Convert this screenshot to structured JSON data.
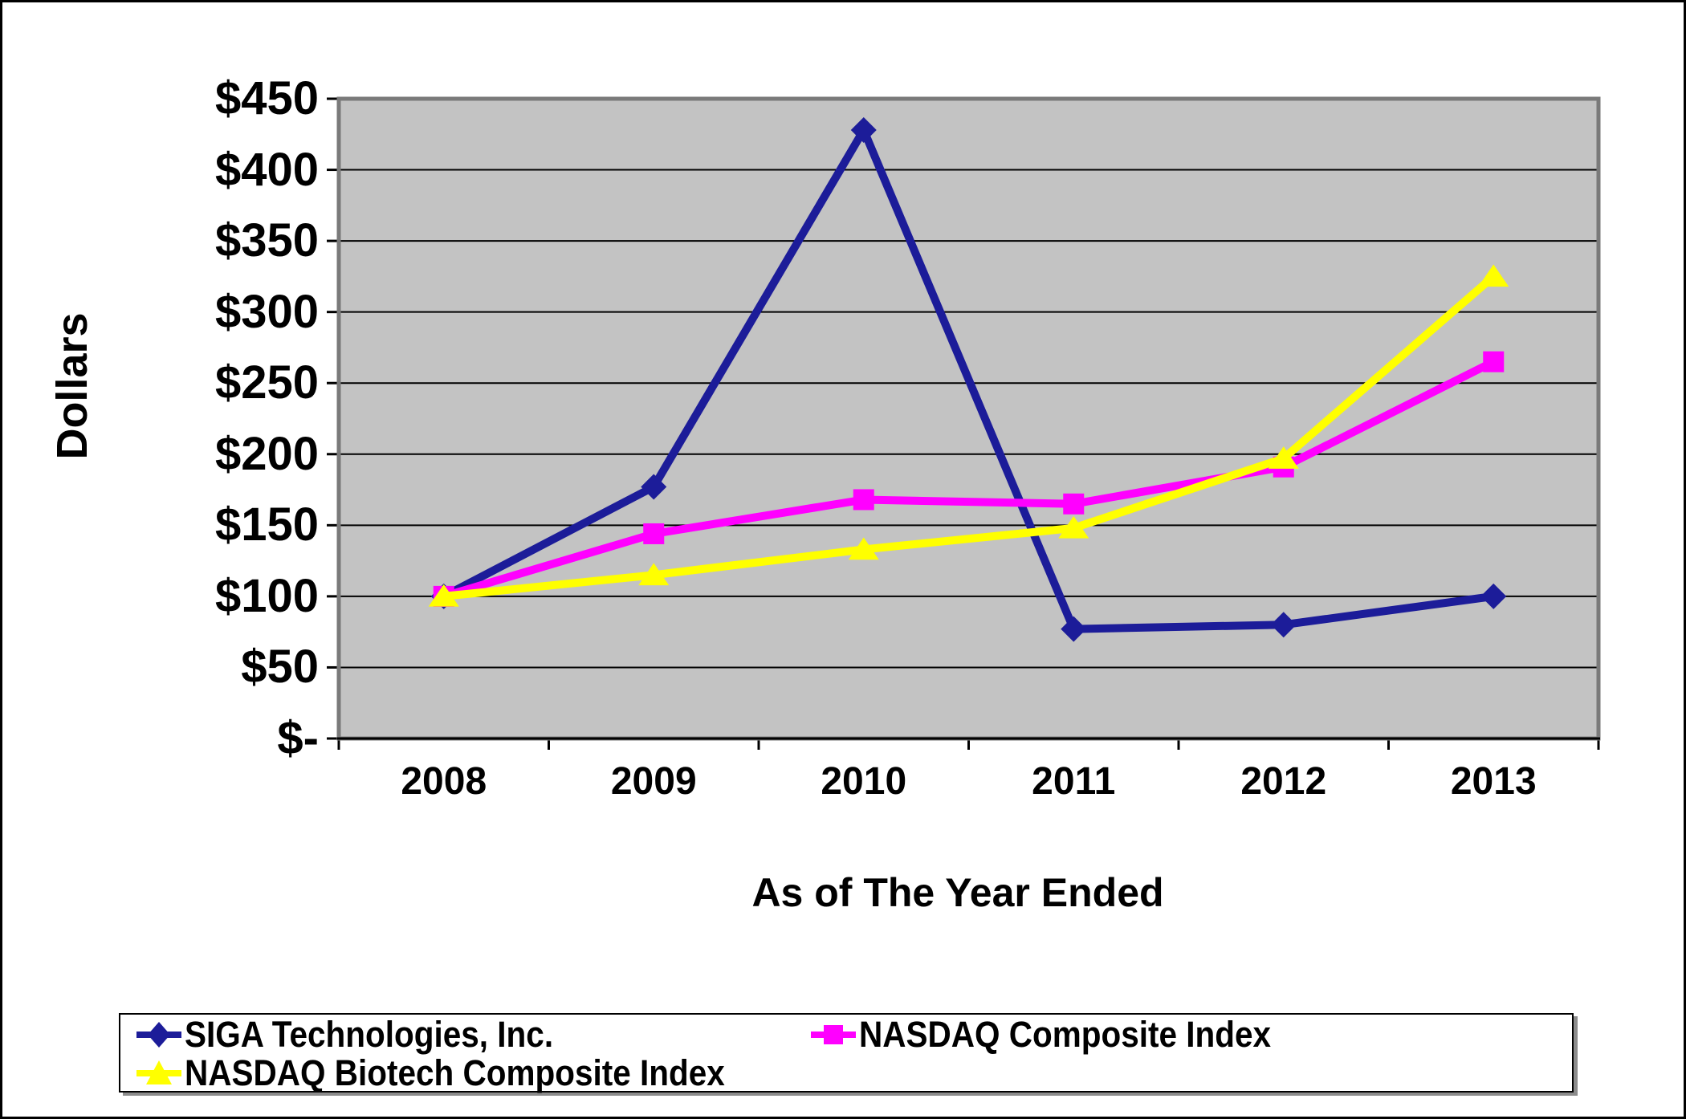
{
  "chart_data": {
    "type": "line",
    "title": "",
    "xlabel": "As of The Year Ended",
    "ylabel": "Dollars",
    "categories": [
      "2008",
      "2009",
      "2010",
      "2011",
      "2012",
      "2013"
    ],
    "series": [
      {
        "name": "SIGA Technologies, Inc.",
        "color": "#1c1c99",
        "marker": "diamond",
        "values": [
          100,
          177,
          428,
          77,
          80,
          100
        ]
      },
      {
        "name": "NASDAQ Composite Index",
        "color": "#ff00ff",
        "marker": "square",
        "values": [
          100,
          144,
          168,
          165,
          191,
          265
        ]
      },
      {
        "name": "NASDAQ Biotech Composite Index",
        "color": "#ffff00",
        "marker": "triangle",
        "values": [
          100,
          115,
          133,
          148,
          197,
          325
        ]
      }
    ],
    "y_axis": {
      "min": 0,
      "max": 450,
      "step": 50,
      "tick_labels_top_to_bottom": [
        "$450",
        "$400",
        "$350",
        "$300",
        "$250",
        "$200",
        "$150",
        "$100",
        "$50",
        "$-"
      ]
    },
    "x_axis": {
      "tick_labels": [
        "2008",
        "2009",
        "2010",
        "2011",
        "2012",
        "2013"
      ]
    },
    "legend_position": "bottom",
    "plot_bg": "#c3c3c3",
    "gridline_color": "#000000",
    "plot_border_color": "#7a7a7a",
    "ylim": [
      0,
      450
    ],
    "grid": "horizontal"
  }
}
